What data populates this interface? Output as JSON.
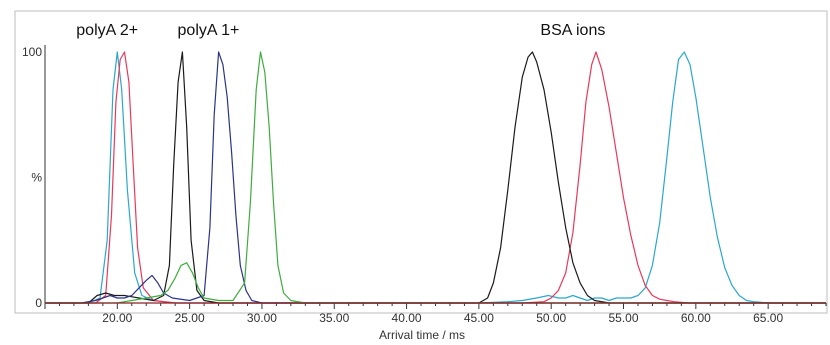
{
  "chart_data": {
    "type": "line",
    "title": "",
    "xlabel": "Arrival time / ms",
    "ylabel": "%",
    "xlim": [
      15.0,
      69.0
    ],
    "ylim": [
      0,
      100
    ],
    "x_ticks": [
      20,
      25,
      30,
      35,
      40,
      45,
      50,
      55,
      60,
      65
    ],
    "x_tick_labels": [
      "20.00",
      "25.00",
      "30.00",
      "35.00",
      "40.00",
      "45.00",
      "50.00",
      "55.00",
      "60.00",
      "65.00"
    ],
    "y_ticks": [
      0,
      50,
      100
    ],
    "y_tick_labels": [
      "0",
      "%",
      "100"
    ],
    "grid": false,
    "annotations": [
      {
        "text": "polyA 2+",
        "x": 19.3
      },
      {
        "text": "polyA 1+",
        "x": 26.3
      },
      {
        "text": "BSA ions",
        "x": 51.5
      }
    ],
    "series": [
      {
        "color": "#29a8cf",
        "x": [
          15.0,
          18.0,
          18.8,
          19.3,
          19.7,
          20.0,
          20.3,
          20.7,
          21.2,
          21.7,
          22.5,
          24.0,
          28.0,
          35.0,
          40.0,
          45.0,
          47.0,
          48.0,
          49.0,
          49.8,
          50.5,
          51.0,
          51.5,
          52.0,
          52.5,
          53.0,
          53.5,
          54.0,
          54.5,
          55.0,
          55.5,
          56.0,
          56.5,
          57.0,
          57.5,
          58.0,
          58.4,
          58.8,
          59.2,
          59.6,
          60.0,
          60.5,
          61.0,
          61.5,
          62.0,
          62.5,
          63.0,
          63.5,
          64.0,
          65.0,
          69.0
        ],
        "y": [
          0,
          0,
          2,
          25,
          85,
          100,
          85,
          45,
          12,
          3,
          1,
          0,
          0,
          0,
          0,
          0,
          0.5,
          1,
          2,
          3,
          2,
          2,
          3,
          2,
          1,
          2,
          2,
          1,
          2,
          2,
          2,
          3,
          6,
          15,
          32,
          58,
          80,
          97,
          100,
          95,
          82,
          62,
          42,
          26,
          14,
          7,
          3,
          1,
          0.5,
          0,
          0
        ]
      },
      {
        "color": "#e8395c",
        "x": [
          15.0,
          18.5,
          19.2,
          19.6,
          19.9,
          20.2,
          20.5,
          20.8,
          21.1,
          21.4,
          21.8,
          22.5,
          24.0,
          30.0,
          40.0,
          48.0,
          49.5,
          50.0,
          50.5,
          51.0,
          51.5,
          52.0,
          52.4,
          52.8,
          53.1,
          53.5,
          54.0,
          54.5,
          55.0,
          55.5,
          56.0,
          56.5,
          57.0,
          57.5,
          58.0,
          58.5,
          59.5,
          69.0
        ],
        "y": [
          0,
          0,
          3,
          35,
          80,
          97,
          100,
          88,
          55,
          22,
          6,
          1,
          0,
          0,
          0,
          0,
          0.5,
          2,
          5,
          12,
          28,
          55,
          80,
          95,
          100,
          93,
          78,
          60,
          42,
          27,
          15,
          7,
          3,
          1.5,
          1,
          0.5,
          0,
          0
        ]
      },
      {
        "color": "#1a1a1a",
        "x": [
          15.0,
          18.0,
          18.6,
          19.2,
          19.8,
          20.5,
          21.5,
          22.5,
          23.2,
          23.6,
          23.9,
          24.2,
          24.5,
          24.8,
          25.1,
          25.5,
          26.0,
          27.0,
          30.0,
          35.0,
          40.0,
          45.0,
          45.6,
          46.0,
          46.5,
          47.0,
          47.5,
          48.0,
          48.4,
          48.7,
          49.0,
          49.5,
          50.0,
          50.5,
          51.0,
          51.5,
          52.0,
          52.5,
          53.0,
          54.0,
          69.0
        ],
        "y": [
          0,
          0,
          3,
          4,
          3,
          3,
          2,
          1,
          3,
          15,
          55,
          88,
          100,
          70,
          25,
          5,
          1,
          0,
          0,
          0,
          0,
          0,
          2,
          8,
          22,
          45,
          70,
          90,
          98,
          100,
          96,
          85,
          68,
          48,
          30,
          16,
          8,
          3,
          1,
          0,
          0
        ]
      },
      {
        "color": "#2b3488",
        "x": [
          15.0,
          17.5,
          18.5,
          19.0,
          19.5,
          20.0,
          20.5,
          21.0,
          21.5,
          22.0,
          22.4,
          22.8,
          23.2,
          23.8,
          25.0,
          26.0,
          26.4,
          26.7,
          27.0,
          27.3,
          27.6,
          27.9,
          28.2,
          28.5,
          28.9,
          29.3,
          30.0,
          69.0
        ],
        "y": [
          0,
          0,
          1,
          2,
          3,
          2,
          2,
          3,
          6,
          9,
          11,
          8,
          4,
          2,
          1,
          3,
          30,
          75,
          100,
          95,
          82,
          60,
          35,
          15,
          5,
          1,
          0,
          0
        ]
      },
      {
        "color": "#3dad3d",
        "x": [
          15.0,
          20.0,
          21.0,
          22.0,
          23.0,
          23.5,
          24.0,
          24.4,
          24.8,
          25.2,
          25.6,
          26.0,
          27.0,
          28.0,
          28.8,
          29.2,
          29.6,
          29.9,
          30.2,
          30.5,
          30.8,
          31.1,
          31.5,
          32.0,
          33.0,
          69.0
        ],
        "y": [
          0,
          0,
          1,
          2,
          3,
          5,
          10,
          15,
          16,
          12,
          6,
          2,
          1,
          1,
          8,
          40,
          85,
          100,
          92,
          70,
          40,
          15,
          4,
          1,
          0,
          0
        ]
      },
      {
        "color": "#8b2121",
        "x": [
          15.0,
          69.0
        ],
        "y": [
          0,
          0
        ]
      }
    ]
  }
}
